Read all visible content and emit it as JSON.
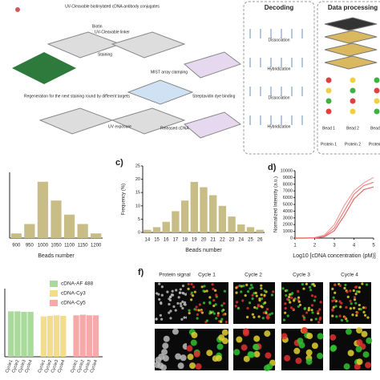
{
  "diagram": {
    "conjugates": "UV-Cleavable biotinylated cDNA-antibody conjugates",
    "linker": "UV-Cleavable linker",
    "biotin": "Biotin",
    "staining": "Staining",
    "regeneration": "Regeneration for the next staining round by different targets",
    "clamping": "MIST array clamping",
    "streptavidin": "Streptavidin dye binding",
    "uv": "UV exposure",
    "released": "Released cDNA",
    "decoding": "Decoding",
    "steps": [
      "Dissociation",
      "Hybridization",
      "Dissociation",
      "Hybridization"
    ],
    "processing": "Data processing",
    "beads": [
      "Bead 1",
      "Bead 2",
      "Bead n"
    ],
    "proteins": [
      "Protein 1",
      "Protein 2",
      "Protein n"
    ]
  },
  "chart_data": [
    {
      "type": "bar",
      "xlabel": "Beads number",
      "categories": [
        "900",
        "950",
        "1000",
        "1050",
        "1100",
        "1150",
        "1200"
      ],
      "values": [
        1,
        3,
        12,
        8,
        5,
        3,
        1
      ],
      "color": "#c8bd86",
      "ylim": [
        0,
        14
      ]
    },
    {
      "type": "bar",
      "panel": "c)",
      "ylabel": "Frequency (%)",
      "xlabel": "Beads number",
      "categories": [
        "14",
        "15",
        "16",
        "17",
        "18",
        "19",
        "20",
        "21",
        "22",
        "23",
        "24",
        "25",
        "26"
      ],
      "values": [
        1,
        2,
        4,
        8,
        12,
        19,
        17,
        14,
        10,
        6,
        3,
        2,
        1
      ],
      "color": "#c8bd86",
      "ylim": [
        0,
        25
      ],
      "yticks": [
        0,
        5,
        10,
        15,
        20,
        25
      ]
    },
    {
      "type": "line",
      "panel": "d)",
      "ylabel": "Normalized Intensity (a.u.)",
      "xlabel": "Log10 [cDNA concentration (pM)]",
      "x": [
        1,
        1.5,
        2,
        2.5,
        3,
        3.5,
        4,
        4.5,
        5
      ],
      "series": [
        {
          "color": "#ef7f7f",
          "values": [
            0,
            0,
            50,
            300,
            1500,
            4000,
            6500,
            7800,
            8300
          ]
        },
        {
          "color": "#f4a0a0",
          "values": [
            0,
            0,
            80,
            450,
            2000,
            4800,
            7000,
            8200,
            9000
          ]
        },
        {
          "color": "#e96a6a",
          "values": [
            0,
            0,
            30,
            200,
            1100,
            3300,
            5800,
            7200,
            7600
          ]
        }
      ],
      "xlim": [
        1,
        5
      ],
      "xticks": [
        1,
        2,
        3,
        4,
        5
      ],
      "ylim": [
        0,
        10000
      ],
      "yticks": [
        0,
        1000,
        2000,
        3000,
        4000,
        5000,
        6000,
        7000,
        8000,
        9000,
        10000
      ]
    },
    {
      "type": "grouped",
      "categories": [
        "Cycle1",
        "Cycle2",
        "Cycle3",
        "Cycle4"
      ],
      "series": [
        {
          "name": "cDNA-AF 488",
          "color": "#a9d99b",
          "values": [
            0.8,
            0.8,
            0.79,
            0.79
          ]
        },
        {
          "name": "cDNA-Cy3",
          "color": "#f1dd8c",
          "values": [
            0.71,
            0.72,
            0.73,
            0.72
          ]
        },
        {
          "name": "cDNA-Cy5",
          "color": "#f5a9a9",
          "values": [
            0.73,
            0.74,
            0.73,
            0.73
          ]
        }
      ],
      "ylim": [
        0,
        1.2
      ]
    }
  ],
  "images": {
    "panel": "f)",
    "titles": [
      "Protein signal",
      "Cycle 1",
      "Cycle 2",
      "Cycle 3",
      "Cycle 4"
    ]
  }
}
